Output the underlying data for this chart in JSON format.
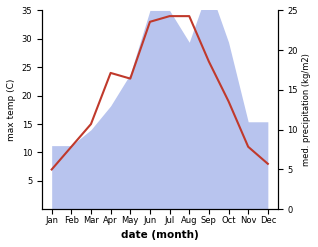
{
  "months": [
    "Jan",
    "Feb",
    "Mar",
    "Apr",
    "May",
    "Jun",
    "Jul",
    "Aug",
    "Sep",
    "Oct",
    "Nov",
    "Dec"
  ],
  "x": [
    1,
    2,
    3,
    4,
    5,
    6,
    7,
    8,
    9,
    10,
    11,
    12
  ],
  "temp": [
    7,
    11,
    15,
    24,
    23,
    33,
    34,
    34,
    26,
    19,
    11,
    8
  ],
  "precip": [
    8,
    8,
    10,
    13,
    17,
    25,
    25,
    21,
    28,
    21,
    11,
    11
  ],
  "temp_color": "#c0392b",
  "precip_fill_color": "#b8c4ee",
  "ylabel_left": "max temp (C)",
  "ylabel_right": "med. precipitation (kg/m2)",
  "xlabel": "date (month)",
  "ylim_left": [
    0,
    35
  ],
  "ylim_right": [
    0,
    25
  ],
  "yticks_left": [
    5,
    10,
    15,
    20,
    25,
    30,
    35
  ],
  "yticks_right": [
    0,
    5,
    10,
    15,
    20,
    25
  ],
  "background_color": "#ffffff",
  "temp_linewidth": 1.5,
  "figsize": [
    3.18,
    2.47
  ],
  "dpi": 100
}
